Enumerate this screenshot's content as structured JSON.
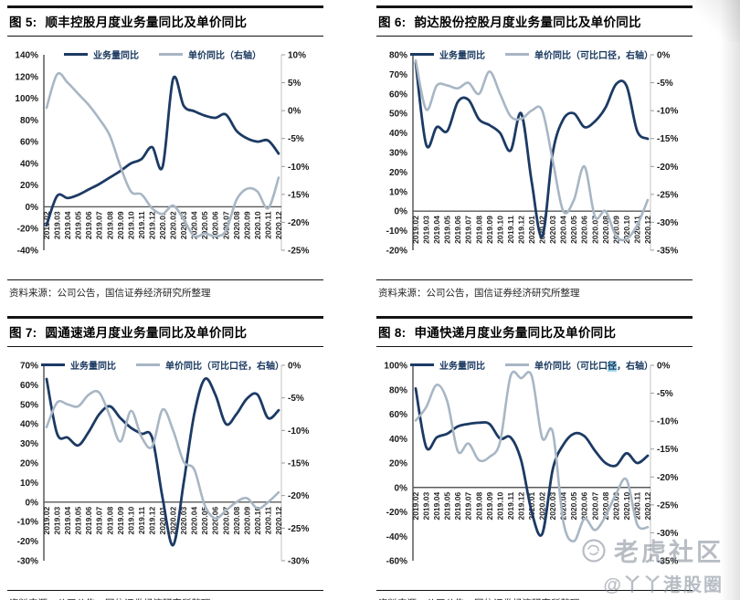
{
  "page": {
    "source_note": "资料来源：公司公告，国信证券经济研究所整理",
    "watermark": {
      "brand": "老虎社区",
      "handle": "@丫丫港股圈",
      "icon": "tiger-icon"
    }
  },
  "colors": {
    "volume_line": "#1c3a64",
    "price_line": "#a8b6c4",
    "legend_text": "#17365d",
    "axis_text": "#1a1a1a",
    "zero_line": "#5a5a5a",
    "right_axis": "#c3c3c3",
    "highlight": "#9dd7ea",
    "title_rule": "#141414"
  },
  "charts": [
    {
      "figure_label": "图 5:",
      "title": "顺丰控股月度业务量同比及单价同比",
      "source": "资料来源：公司公告，国信证券经济研究所整理",
      "chart_data": {
        "type": "line",
        "legend_position": "top",
        "categories": [
          "2019.02",
          "2019.03",
          "2019.04",
          "2019.05",
          "2019.06",
          "2019.07",
          "2019.08",
          "2019.09",
          "2019.10",
          "2019.11",
          "2019.12",
          "2020.01",
          "2020.02",
          "2020.03",
          "2020.04",
          "2020.05",
          "2020.06",
          "2020.07",
          "2020.08",
          "2020.09",
          "2020.10",
          "2020.11",
          "2020.12"
        ],
        "left_axis": {
          "min": -40,
          "max": 140,
          "step": 20,
          "unit": "%"
        },
        "right_axis": {
          "min": -25,
          "max": 10,
          "step": 5,
          "unit": "%"
        },
        "series": [
          {
            "name": "业务量同比",
            "label": "业务量同比",
            "role": "volume",
            "axis": "left",
            "values": [
              -17,
              10,
              8,
              11,
              16,
              21,
              27,
              33,
              40,
              44,
              55,
              37,
              118,
              93,
              88,
              84,
              82,
              85,
              70,
              63,
              60,
              61,
              49
            ]
          },
          {
            "name": "单价同比（右轴）",
            "label": "单价同比（右轴）",
            "role": "price",
            "axis": "right",
            "values": [
              0.5,
              6.5,
              5,
              3,
              1,
              -1.5,
              -4.5,
              -10,
              -14.5,
              -15,
              -17.5,
              -18.5,
              -17,
              -19.5,
              -22.5,
              -22,
              -22.5,
              -21.5,
              -16,
              -14,
              -14.5,
              -17.5,
              -12
            ]
          }
        ]
      }
    },
    {
      "figure_label": "图 6:",
      "title": "韵达股份控股月度业务量同比及单价同比",
      "source": "资料来源：公司公告，国信证券经济研究所整理",
      "chart_data": {
        "type": "line",
        "legend_position": "top",
        "categories": [
          "2019.02",
          "2019.03",
          "2019.04",
          "2019.05",
          "2019.06",
          "2019.07",
          "2019.08",
          "2019.09",
          "2019.10",
          "2019.11",
          "2019.12",
          "2020.01",
          "2020.02",
          "2020.03",
          "2020.04",
          "2020.05",
          "2020.06",
          "2020.07",
          "2020.08",
          "2020.09",
          "2020.10",
          "2020.11",
          "2020.12"
        ],
        "left_axis": {
          "min": -20,
          "max": 80,
          "step": 10,
          "unit": "%"
        },
        "right_axis": {
          "min": -35,
          "max": 0,
          "step": 5,
          "unit": "%"
        },
        "series": [
          {
            "name": "业务量同比",
            "label": "业务量同比",
            "role": "volume",
            "axis": "left",
            "values": [
              76,
              34,
              43,
              41,
              56,
              57,
              47,
              44,
              40,
              31,
              50,
              15,
              -13,
              30,
              47,
              50,
              43,
              46,
              53,
              65,
              64,
              41,
              37
            ]
          },
          {
            "name": "单价同比（可比口径，右轴）",
            "label": "单价同比（可比口径，右轴）",
            "role": "price",
            "axis": "right",
            "values": [
              -1,
              -9.8,
              -5.5,
              -5.5,
              -6,
              -5,
              -7,
              -3,
              -7,
              -11,
              -11.5,
              -10,
              -10,
              -19,
              -28,
              -26,
              -20,
              -29,
              -28,
              -32.5,
              -33,
              -30.5,
              -26
            ]
          }
        ]
      }
    },
    {
      "figure_label": "图 7:",
      "title": "圆通速递月度业务量同比及单价同比",
      "source": "资料来源：公司公告，国信证券经济研究所整理",
      "chart_data": {
        "type": "line",
        "legend_position": "top",
        "categories": [
          "2019.02",
          "2019.03",
          "2019.04",
          "2019.05",
          "2019.06",
          "2019.07",
          "2019.08",
          "2019.09",
          "2019.10",
          "2019.11",
          "2019.12",
          "2020.01",
          "2020.02",
          "2020.03",
          "2020.04",
          "2020.05",
          "2020.06",
          "2020.07",
          "2020.08",
          "2020.09",
          "2020.10",
          "2020.11",
          "2020.12"
        ],
        "left_axis": {
          "min": -30,
          "max": 70,
          "step": 10,
          "unit": "%"
        },
        "right_axis": {
          "min": -30,
          "max": 0,
          "step": 5,
          "unit": "%"
        },
        "series": [
          {
            "name": "业务量同比",
            "label": "业务量同比",
            "role": "volume",
            "axis": "left",
            "values": [
              63,
              35,
              33,
              29,
              36,
              45,
              49,
              43,
              38,
              35,
              33,
              2,
              -22,
              10,
              45,
              63,
              55,
              40,
              45,
              53,
              55,
              43,
              47
            ]
          },
          {
            "name": "单价同比（可比口径，右轴）",
            "label": "单价同比（可比口径，右轴）",
            "role": "price",
            "axis": "right",
            "values": [
              -9.5,
              -5.7,
              -6,
              -6.3,
              -4.5,
              -4.2,
              -7.8,
              -11.7,
              -7,
              -11,
              -12.5,
              -6.8,
              -10,
              -14.8,
              -16,
              -21.5,
              -23.5,
              -22.3,
              -21,
              -20.4,
              -22,
              -21,
              -19.5
            ]
          }
        ]
      }
    },
    {
      "figure_label": "图 8:",
      "title": "申通快递月度业务量同比及单价同比",
      "source": "资料来源：公司公告，国信证券经济研究所整理",
      "chart_data": {
        "type": "line",
        "legend_position": "top",
        "categories": [
          "2019.02",
          "2019.03",
          "2019.04",
          "2019.05",
          "2019.06",
          "2019.07",
          "2019.08",
          "2019.09",
          "2019.10",
          "2019.11",
          "2019.12",
          "2020.01",
          "2020.02",
          "2020.03",
          "2020.04",
          "2020.05",
          "2020.06",
          "2020.07",
          "2020.08",
          "2020.09",
          "2020.10",
          "2020.11",
          "2020.12"
        ],
        "left_axis": {
          "min": -60,
          "max": 100,
          "step": 20,
          "unit": "%"
        },
        "right_axis": {
          "min": -35,
          "max": 0,
          "step": 5,
          "unit": "%"
        },
        "series": [
          {
            "name": "业务量同比",
            "label": "业务量同比",
            "role": "volume",
            "axis": "left",
            "values": [
              81,
              33,
              41,
              44,
              50,
              52,
              53,
              52,
              40,
              41,
              22,
              -20,
              -38,
              15,
              35,
              44,
              42,
              30,
              20,
              18,
              28,
              20,
              26
            ]
          },
          {
            "name": "单价同比（可比口径，右轴）",
            "label": "单价同比（可比口径，右轴）",
            "label_highlight": "径",
            "role": "price",
            "axis": "right",
            "values": [
              -9.9,
              -7.5,
              -3.5,
              -6.5,
              -15.4,
              -14,
              -17,
              -16.4,
              -13.7,
              -1.9,
              -2.3,
              -1.9,
              -13,
              -12,
              -28,
              -31.5,
              -27.5,
              -29.5,
              -27,
              -23,
              -20.5,
              -28.5,
              -29
            ]
          }
        ]
      }
    }
  ]
}
